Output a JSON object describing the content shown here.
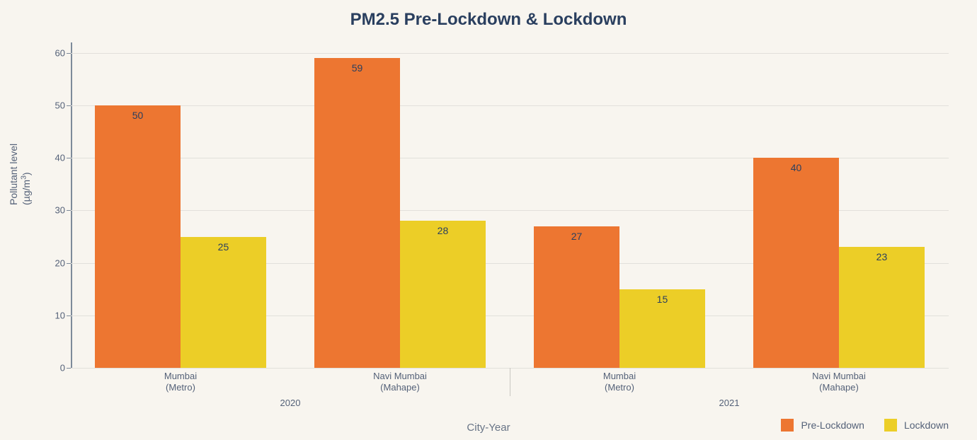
{
  "chart": {
    "type": "bar",
    "title": "PM2.5 Pre-Lockdown & Lockdown",
    "title_fontsize": 24,
    "title_color": "#2a3f5f",
    "background_color": "#f8f5ef",
    "plot_background": "#f8f5ef",
    "grid_color": "#e2e0db",
    "axis_color": "#7d8a9a",
    "ylabel_line1": "Pollutant level",
    "ylabel_line2": "(µg/m³)",
    "ylabel_fontsize": 14,
    "xlabel": "City-Year",
    "xlabel_fontsize": 15,
    "label_color": "#546178",
    "tick_fontsize": 13,
    "ylim": [
      0,
      62
    ],
    "yticks": [
      0,
      10,
      20,
      30,
      40,
      50,
      60
    ],
    "value_label_fontsize": 14,
    "value_label_color": "#2a3f5f",
    "bar_width_ratio": 0.39,
    "series": [
      {
        "name": "Pre-Lockdown",
        "color": "#ed7631"
      },
      {
        "name": "Lockdown",
        "color": "#ecce27"
      }
    ],
    "year_groups": [
      {
        "year": "2020",
        "cities": [
          "Mumbai\n(Metro)",
          "Navi Mumbai\n(Mahape)"
        ]
      },
      {
        "year": "2021",
        "cities": [
          "Mumbai\n(Metro)",
          "Navi Mumbai\n(Mahape)"
        ]
      }
    ],
    "groups": [
      {
        "city_l1": "Mumbai",
        "city_l2": "(Metro)",
        "year": "2020",
        "values": [
          50,
          25
        ]
      },
      {
        "city_l1": "Navi Mumbai",
        "city_l2": "(Mahape)",
        "year": "2020",
        "values": [
          59,
          28
        ]
      },
      {
        "city_l1": "Mumbai",
        "city_l2": "(Metro)",
        "year": "2021",
        "values": [
          27,
          15
        ]
      },
      {
        "city_l1": "Navi Mumbai",
        "city_l2": "(Mahape)",
        "year": "2021",
        "values": [
          40,
          23
        ]
      }
    ],
    "legend_position": "bottom-right"
  }
}
